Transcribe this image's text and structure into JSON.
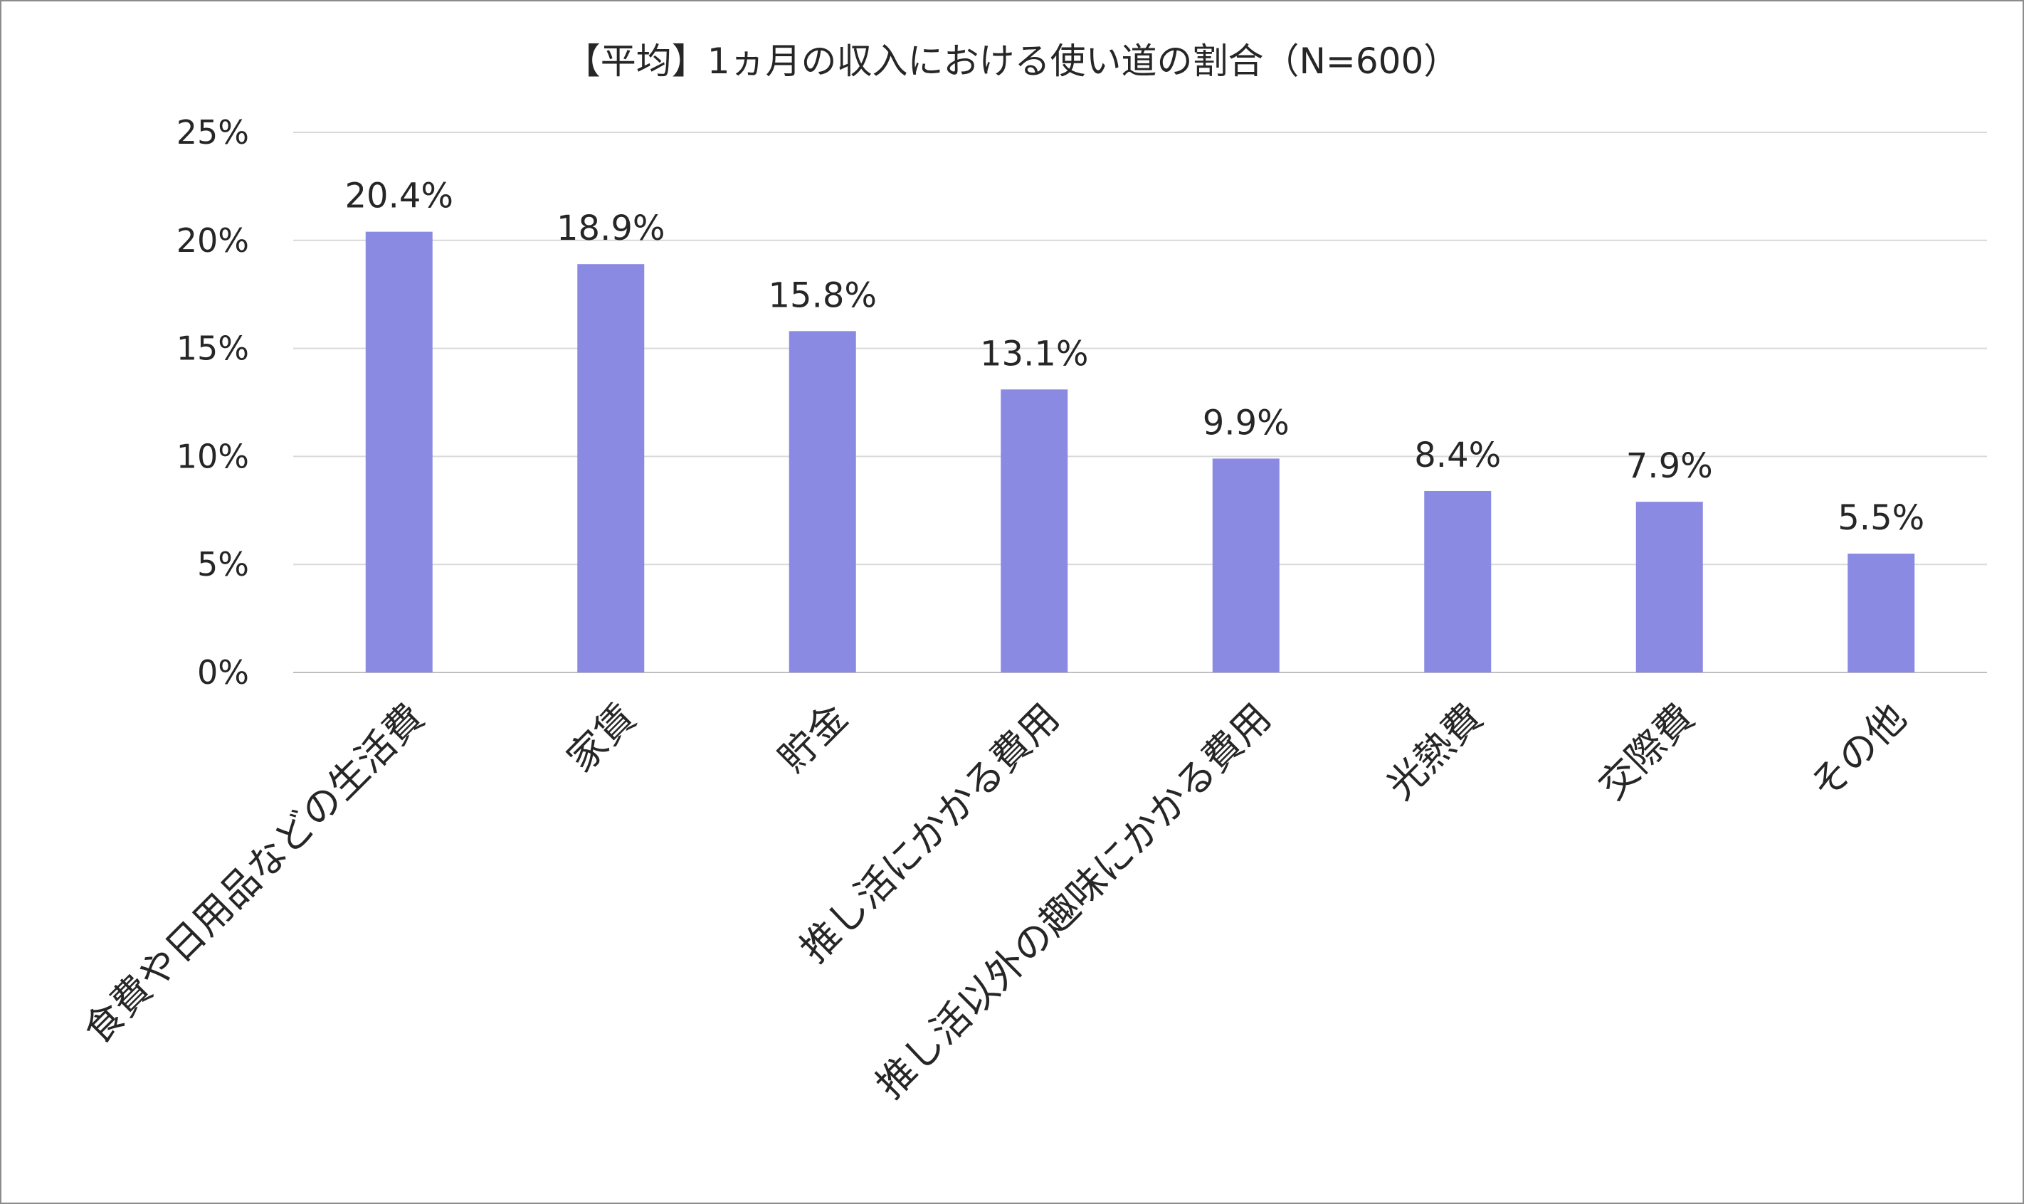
{
  "chart_data": {
    "type": "bar",
    "title": "【平均】1ヵ月の収入における使い道の割合（N=600）",
    "xlabel": "",
    "ylabel": "",
    "categories": [
      "食費や日用品などの生活費",
      "家賃",
      "貯金",
      "推し活にかかる費用",
      "推し活以外の趣味にかかる費用",
      "光熱費",
      "交際費",
      "その他"
    ],
    "values": [
      20.4,
      18.9,
      15.8,
      13.1,
      9.9,
      8.4,
      7.9,
      5.5
    ],
    "data_labels": [
      "20.4%",
      "18.9%",
      "15.8%",
      "13.1%",
      "9.9%",
      "8.4%",
      "7.9%",
      "5.5%"
    ],
    "ylim": [
      0,
      25
    ],
    "yticks": [
      0,
      5,
      10,
      15,
      20,
      25
    ],
    "ytick_labels": [
      "0%",
      "5%",
      "10%",
      "15%",
      "20%",
      "25%"
    ],
    "grid": true,
    "legend": "none",
    "bar_color": "#8b8ae3",
    "grid_color": "#d9d9d9"
  }
}
